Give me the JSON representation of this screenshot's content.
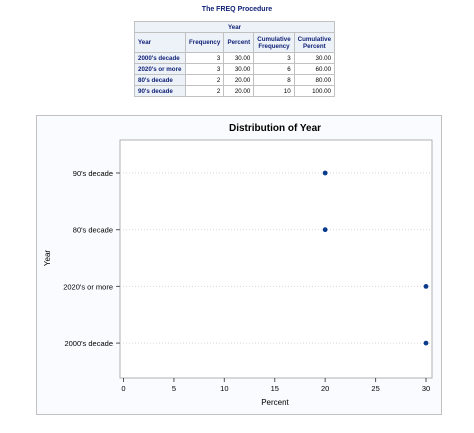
{
  "procedure_title": "The FREQ Procedure",
  "table": {
    "group_header": "Year",
    "columns": [
      "Year",
      "Frequency",
      "Percent",
      "Cumulative Frequency",
      "Cumulative Percent"
    ],
    "rows": [
      {
        "year": "2000's decade",
        "frequency": "3",
        "percent": "30.00",
        "cum_frequency": "3",
        "cum_percent": "30.00"
      },
      {
        "year": "2020's or more",
        "frequency": "3",
        "percent": "30.00",
        "cum_frequency": "6",
        "cum_percent": "60.00"
      },
      {
        "year": "80's decade",
        "frequency": "2",
        "percent": "20.00",
        "cum_frequency": "8",
        "cum_percent": "80.00"
      },
      {
        "year": "90's decade",
        "frequency": "2",
        "percent": "20.00",
        "cum_frequency": "10",
        "cum_percent": "100.00"
      }
    ]
  },
  "chart_data": {
    "type": "scatter",
    "title": "Distribution of Year",
    "xlabel": "Percent",
    "ylabel": "Year",
    "xlim": [
      0,
      30
    ],
    "xticks": [
      0,
      5,
      10,
      15,
      20,
      25,
      30
    ],
    "categories": [
      "90's decade",
      "80's decade",
      "2020's or more",
      "2000's decade"
    ],
    "values": [
      20,
      20,
      30,
      30
    ],
    "grid": "horizontal dotted reference lines",
    "marker_color": "#0b3c8c"
  }
}
